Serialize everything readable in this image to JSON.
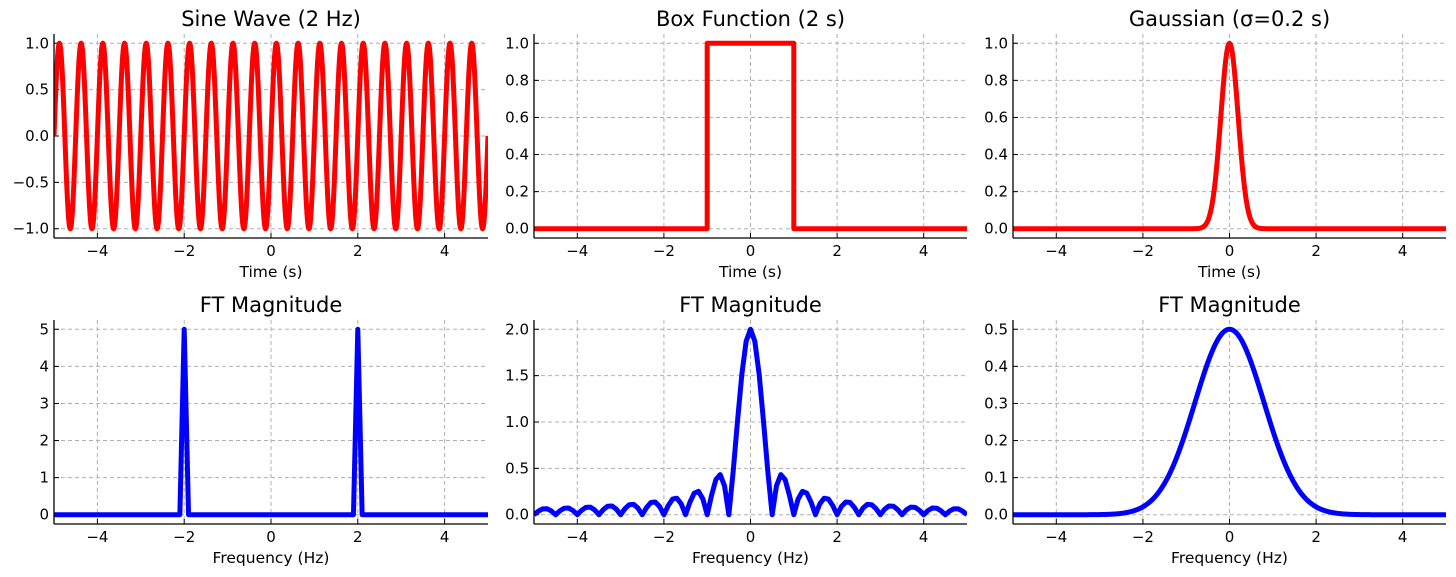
{
  "chart_data": [
    {
      "type": "line",
      "title": "Sine Wave (2 Hz)",
      "xlabel": "Time (s)",
      "ylabel": "",
      "xlim": [
        -5,
        5
      ],
      "ylim": [
        -1.1,
        1.1
      ],
      "xticks": [
        -4,
        -2,
        0,
        2,
        4
      ],
      "xtick_labels": [
        "−4",
        "−2",
        "0",
        "2",
        "4"
      ],
      "yticks": [
        -1.0,
        -0.5,
        0.0,
        0.5,
        1.0
      ],
      "ytick_labels": [
        "−1.0",
        "−0.5",
        "0.0",
        "0.5",
        "1.0"
      ],
      "grid": true,
      "series": [
        {
          "color": "#ff0000",
          "function": "sin",
          "frequency_hz": 2,
          "amplitude": 1,
          "x_range": [
            -5,
            5
          ]
        }
      ]
    },
    {
      "type": "line",
      "title": "Box Function (2 s)",
      "xlabel": "Time (s)",
      "ylabel": "",
      "xlim": [
        -5,
        5
      ],
      "ylim": [
        -0.05,
        1.05
      ],
      "xticks": [
        -4,
        -2,
        0,
        2,
        4
      ],
      "xtick_labels": [
        "−4",
        "−2",
        "0",
        "2",
        "4"
      ],
      "yticks": [
        0.0,
        0.2,
        0.4,
        0.6,
        0.8,
        1.0
      ],
      "ytick_labels": [
        "0.0",
        "0.2",
        "0.4",
        "0.6",
        "0.8",
        "1.0"
      ],
      "grid": true,
      "series": [
        {
          "color": "#ff0000",
          "x": [
            -5,
            -1,
            -1,
            1,
            1,
            5
          ],
          "y": [
            0,
            0,
            1,
            1,
            0,
            0
          ]
        }
      ]
    },
    {
      "type": "line",
      "title": "Gaussian (σ=0.2 s)",
      "xlabel": "Time (s)",
      "ylabel": "",
      "xlim": [
        -5,
        5
      ],
      "ylim": [
        -0.05,
        1.05
      ],
      "xticks": [
        -4,
        -2,
        0,
        2,
        4
      ],
      "xtick_labels": [
        "−4",
        "−2",
        "0",
        "2",
        "4"
      ],
      "yticks": [
        0.0,
        0.2,
        0.4,
        0.6,
        0.8,
        1.0
      ],
      "ytick_labels": [
        "0.0",
        "0.2",
        "0.4",
        "0.6",
        "0.8",
        "1.0"
      ],
      "grid": true,
      "series": [
        {
          "color": "#ff0000",
          "function": "gaussian",
          "sigma": 0.2,
          "peak": 1.0,
          "center": 0,
          "x_range": [
            -5,
            5
          ]
        }
      ]
    },
    {
      "type": "line",
      "title": "FT Magnitude",
      "xlabel": "Frequency (Hz)",
      "ylabel": "",
      "xlim": [
        -5,
        5
      ],
      "ylim": [
        -0.25,
        5.25
      ],
      "xticks": [
        -4,
        -2,
        0,
        2,
        4
      ],
      "xtick_labels": [
        "−4",
        "−2",
        "0",
        "2",
        "4"
      ],
      "yticks": [
        0,
        1,
        2,
        3,
        4,
        5
      ],
      "ytick_labels": [
        "0",
        "1",
        "2",
        "3",
        "4",
        "5"
      ],
      "grid": true,
      "series": [
        {
          "color": "#0000ff",
          "x": [
            -5,
            -2.1,
            -2.0,
            -1.9,
            1.9,
            2.0,
            2.1,
            5
          ],
          "y": [
            0,
            0,
            5,
            0,
            0,
            5,
            0,
            0
          ]
        }
      ]
    },
    {
      "type": "line",
      "title": "FT Magnitude",
      "xlabel": "Frequency (Hz)",
      "ylabel": "",
      "xlim": [
        -5,
        5
      ],
      "ylim": [
        -0.1,
        2.1
      ],
      "xticks": [
        -4,
        -2,
        0,
        2,
        4
      ],
      "xtick_labels": [
        "−4",
        "−2",
        "0",
        "2",
        "4"
      ],
      "yticks": [
        0.0,
        0.5,
        1.0,
        1.5,
        2.0
      ],
      "ytick_labels": [
        "0.0",
        "0.5",
        "1.0",
        "1.5",
        "2.0"
      ],
      "grid": true,
      "series": [
        {
          "color": "#0000ff",
          "function": "abs_sinc",
          "peak": 2.0,
          "zero_spacing_hz": 0.5,
          "x_range": [
            -5,
            5
          ]
        }
      ]
    },
    {
      "type": "line",
      "title": "FT Magnitude",
      "xlabel": "Frequency (Hz)",
      "ylabel": "",
      "xlim": [
        -5,
        5
      ],
      "ylim": [
        -0.025,
        0.525
      ],
      "xticks": [
        -4,
        -2,
        0,
        2,
        4
      ],
      "xtick_labels": [
        "−4",
        "−2",
        "0",
        "2",
        "4"
      ],
      "yticks": [
        0.0,
        0.1,
        0.2,
        0.3,
        0.4,
        0.5
      ],
      "ytick_labels": [
        "0.0",
        "0.1",
        "0.2",
        "0.3",
        "0.4",
        "0.5"
      ],
      "grid": true,
      "series": [
        {
          "color": "#0000ff",
          "function": "gaussian",
          "sigma": 0.796,
          "peak": 0.5,
          "center": 0,
          "x_range": [
            -5,
            5
          ]
        }
      ]
    }
  ]
}
